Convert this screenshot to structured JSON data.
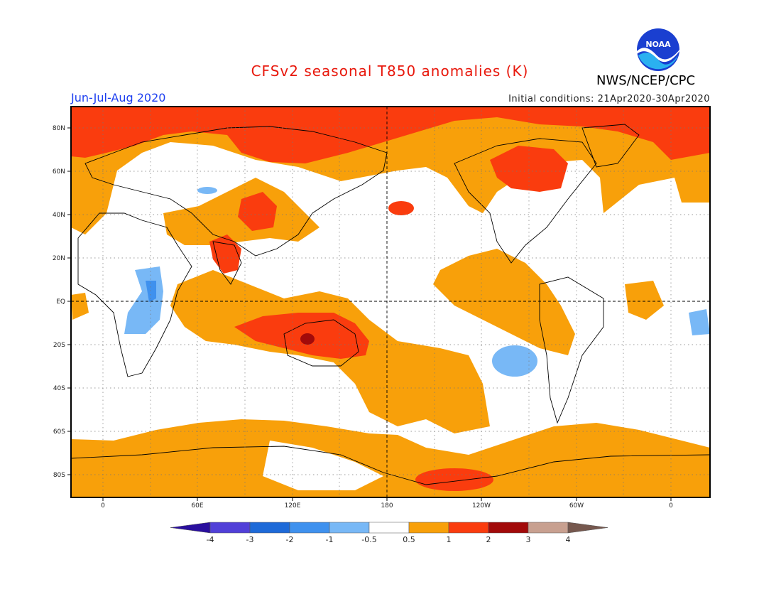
{
  "title": "CFSv2 seasonal T850 anomalies (K)",
  "period": "Jun-Jul-Aug 2020",
  "initial_conditions": "Initial conditions: 21Apr2020-30Apr2020",
  "agency": "NWS/NCEP/CPC",
  "logo_text": "NOAA",
  "lat_labels": [
    "80N",
    "60N",
    "40N",
    "20N",
    "EQ",
    "20S",
    "40S",
    "60S",
    "80S"
  ],
  "lon_labels": [
    "0",
    "60E",
    "120E",
    "180",
    "120W",
    "60W",
    "0"
  ],
  "colorbar": {
    "labels": [
      "-4",
      "-3",
      "-2",
      "-1",
      "-0.5",
      "0.5",
      "1",
      "2",
      "3",
      "4"
    ],
    "colors": [
      "#2a0f9e",
      "#5140d8",
      "#1e6ad8",
      "#3f91ee",
      "#78b8f6",
      "#ffffff",
      "#f8a00a",
      "#fa3c0e",
      "#a20a0a",
      "#c8a090",
      "#76584e"
    ]
  },
  "palette": {
    "orange": "#f8a00a",
    "red": "#fa3c0e",
    "darkred": "#a20a0a",
    "lightblue": "#78b8f6",
    "blue": "#3f91ee"
  }
}
